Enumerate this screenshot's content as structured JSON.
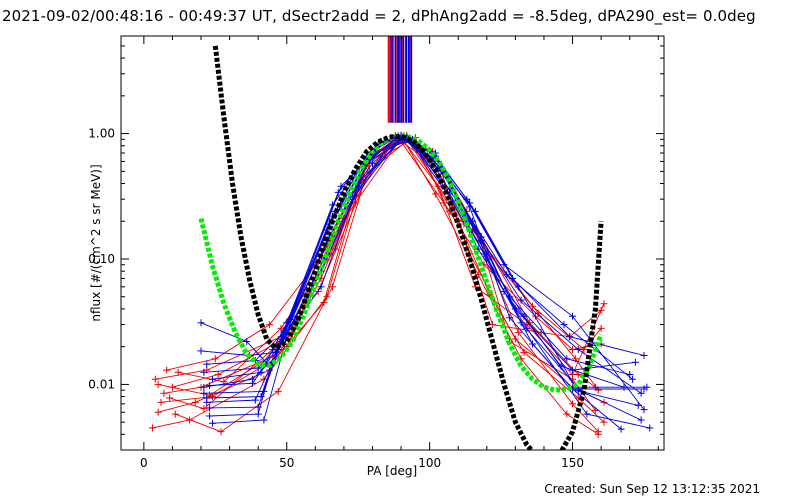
{
  "title": "2021-09-02/00:48:16 - 00:49:37 UT, dSectr2add = 2, dPhAng2add = -8.5deg, dPA290_est=  0.0deg",
  "footer": "Created: Sun Sep 12 13:12:35 2021",
  "colors": {
    "red": "#ee0000",
    "blue": "#0000dd",
    "green": "#00ee00",
    "black": "#000000",
    "purple": "#800080",
    "axis": "#000000"
  },
  "chart_data": {
    "type": "line",
    "title": "2021-09-02/00:48:16 - 00:49:37 UT, dSectr2add = 2, dPhAng2add = -8.5deg, dPA290_est=  0.0deg",
    "xlabel": "PA [deg]",
    "ylabel": "nflux [#/(cm^2 s sr MeV)]",
    "xlim": [
      -8,
      182
    ],
    "ylim": [
      0.003,
      6
    ],
    "yscale": "log",
    "x_ticks": [
      0,
      50,
      100,
      150
    ],
    "x_tick_labels": [
      "0",
      "50",
      "100",
      "150"
    ],
    "y_ticks": [
      0.01,
      0.1,
      1.0
    ],
    "y_tick_labels": [
      "0.01",
      "0.10",
      "1.00"
    ],
    "grid": false,
    "legend": "none",
    "vertical_markers": {
      "y_range": [
        1.22,
        6
      ],
      "red_x": [
        85.6,
        87.2,
        88.6,
        90.2,
        91.6
      ],
      "purple_x": [
        86.2,
        89.4,
        93.0
      ],
      "blue_x": [
        86.8,
        88.0,
        89.0,
        90.0,
        90.8,
        91.8,
        92.6,
        93.6
      ]
    },
    "fit_curves": [
      {
        "color": "green",
        "x": [
          20,
          24,
          28,
          32,
          36,
          40,
          44,
          48,
          52,
          56,
          60,
          64,
          68,
          72,
          76,
          80,
          84,
          88,
          90,
          92,
          96,
          100,
          104,
          108,
          112,
          116,
          120,
          124,
          128,
          132,
          136,
          140,
          144,
          148,
          152,
          156,
          160
        ],
        "y": [
          0.21,
          0.088,
          0.044,
          0.026,
          0.0175,
          0.0145,
          0.0142,
          0.0165,
          0.022,
          0.036,
          0.062,
          0.11,
          0.2,
          0.33,
          0.52,
          0.72,
          0.87,
          0.95,
          0.96,
          0.95,
          0.88,
          0.74,
          0.56,
          0.37,
          0.22,
          0.12,
          0.065,
          0.036,
          0.021,
          0.014,
          0.011,
          0.0095,
          0.009,
          0.0092,
          0.01,
          0.014,
          0.025
        ]
      },
      {
        "color": "black",
        "x": [
          25,
          28,
          31,
          34,
          37,
          40,
          43,
          46,
          50,
          54,
          58,
          62,
          66,
          70,
          74,
          78,
          82,
          86,
          90,
          94,
          98,
          102,
          106,
          110,
          114,
          118,
          122,
          126,
          130,
          134,
          138,
          142,
          146,
          150,
          154,
          158,
          160
        ],
        "y": [
          5.0,
          1.35,
          0.4,
          0.15,
          0.068,
          0.036,
          0.023,
          0.0195,
          0.022,
          0.033,
          0.06,
          0.11,
          0.2,
          0.34,
          0.52,
          0.72,
          0.86,
          0.94,
          0.95,
          0.88,
          0.72,
          0.52,
          0.33,
          0.19,
          0.1,
          0.048,
          0.022,
          0.01,
          0.005,
          0.0033,
          0.0026,
          0.0025,
          0.0029,
          0.0042,
          0.009,
          0.04,
          0.2
        ]
      }
    ],
    "series": [
      {
        "color": "red",
        "x": [
          3,
          16,
          42,
          64,
          76,
          90,
          102,
          117,
          132,
          148,
          159
        ],
        "y": [
          0.0045,
          0.0052,
          0.011,
          0.05,
          0.42,
          0.96,
          0.33,
          0.075,
          0.016,
          0.0058,
          0.004
        ]
      },
      {
        "color": "red",
        "x": [
          5,
          18,
          44,
          62,
          78,
          90,
          104,
          114,
          130,
          150,
          161
        ],
        "y": [
          0.006,
          0.0072,
          0.013,
          0.07,
          0.55,
          0.95,
          0.5,
          0.11,
          0.023,
          0.0095,
          0.0072
        ]
      },
      {
        "color": "red",
        "x": [
          7,
          20,
          46,
          65,
          80,
          92,
          106,
          118,
          135,
          152,
          158
        ],
        "y": [
          0.0085,
          0.0095,
          0.017,
          0.11,
          0.7,
          0.94,
          0.45,
          0.15,
          0.031,
          0.012,
          0.0095
        ]
      },
      {
        "color": "red",
        "x": [
          4,
          22,
          48,
          66,
          82,
          88,
          100,
          112,
          136,
          154,
          160
        ],
        "y": [
          0.011,
          0.013,
          0.024,
          0.16,
          0.82,
          0.93,
          0.6,
          0.19,
          0.042,
          0.019,
          0.028
        ]
      },
      {
        "color": "red",
        "x": [
          8,
          25,
          44,
          60,
          74,
          90,
          103,
          116,
          134,
          150,
          161
        ],
        "y": [
          0.013,
          0.016,
          0.03,
          0.09,
          0.28,
          0.92,
          0.38,
          0.06,
          0.03,
          0.012,
          0.044
        ]
      },
      {
        "color": "red",
        "x": [
          10,
          26,
          52,
          68,
          84,
          92,
          108,
          121,
          133,
          152,
          161
        ],
        "y": [
          0.0095,
          0.012,
          0.025,
          0.2,
          0.74,
          0.9,
          0.26,
          0.052,
          0.018,
          0.0078,
          0.005
        ]
      },
      {
        "color": "red",
        "x": [
          6,
          24,
          46,
          63,
          77,
          91,
          101,
          113,
          131,
          150,
          159
        ],
        "y": [
          0.0072,
          0.008,
          0.016,
          0.045,
          0.6,
          0.96,
          0.72,
          0.24,
          0.026,
          0.007,
          0.0042
        ]
      },
      {
        "color": "red",
        "x": [
          11,
          27,
          47,
          66,
          80,
          89,
          107,
          115,
          138,
          151,
          159
        ],
        "y": [
          0.0058,
          0.0042,
          0.0088,
          0.06,
          0.68,
          0.93,
          0.24,
          0.17,
          0.037,
          0.016,
          0.009
        ]
      },
      {
        "color": "red",
        "x": [
          5,
          23,
          50,
          70,
          83,
          95,
          105,
          119,
          137,
          150,
          160
        ],
        "y": [
          0.01,
          0.0082,
          0.02,
          0.21,
          0.65,
          0.93,
          0.28,
          0.09,
          0.035,
          0.019,
          0.021
        ]
      },
      {
        "color": "red",
        "x": [
          9,
          21,
          45,
          61,
          79,
          93,
          110,
          122,
          139,
          149,
          160
        ],
        "y": [
          0.0078,
          0.0064,
          0.019,
          0.055,
          0.5,
          0.91,
          0.2,
          0.03,
          0.026,
          0.024,
          0.039
        ]
      },
      {
        "color": "red",
        "x": [
          12,
          28,
          48,
          67,
          78,
          92,
          104,
          117,
          128,
          150,
          158
        ],
        "y": [
          0.0125,
          0.0105,
          0.028,
          0.12,
          0.58,
          0.97,
          0.52,
          0.16,
          0.022,
          0.011,
          0.0062
        ]
      },
      {
        "color": "blue",
        "x": [
          20,
          36,
          44,
          62,
          74,
          90,
          100,
          114,
          126,
          146,
          168
        ],
        "y": [
          0.031,
          0.022,
          0.014,
          0.08,
          0.32,
          0.94,
          0.62,
          0.2,
          0.055,
          0.014,
          0.0095
        ]
      },
      {
        "color": "blue",
        "x": [
          21,
          38,
          46,
          64,
          76,
          91,
          104,
          116,
          128,
          148,
          170
        ],
        "y": [
          0.0095,
          0.011,
          0.0165,
          0.14,
          0.43,
          0.93,
          0.54,
          0.17,
          0.05,
          0.016,
          0.012
        ]
      },
      {
        "color": "blue",
        "x": [
          22,
          39,
          47,
          65,
          78,
          92,
          106,
          118,
          130,
          150,
          172
        ],
        "y": [
          0.0072,
          0.0075,
          0.019,
          0.2,
          0.59,
          0.9,
          0.45,
          0.14,
          0.04,
          0.013,
          0.015
        ]
      },
      {
        "color": "blue",
        "x": [
          23,
          40,
          48,
          66,
          80,
          88,
          102,
          112,
          132,
          152,
          174
        ],
        "y": [
          0.0065,
          0.0066,
          0.023,
          0.27,
          0.72,
          0.92,
          0.7,
          0.23,
          0.047,
          0.019,
          0.0085
        ]
      },
      {
        "color": "blue",
        "x": [
          24,
          41,
          50,
          68,
          82,
          90,
          103,
          114,
          129,
          149,
          175
        ],
        "y": [
          0.011,
          0.0125,
          0.031,
          0.34,
          0.82,
          0.95,
          0.6,
          0.28,
          0.07,
          0.024,
          0.017
        ]
      },
      {
        "color": "blue",
        "x": [
          21,
          42,
          51,
          69,
          84,
          93,
          107,
          119,
          133,
          152,
          173
        ],
        "y": [
          0.0085,
          0.0088,
          0.033,
          0.38,
          0.86,
          0.91,
          0.33,
          0.11,
          0.035,
          0.0089,
          0.0068
        ]
      },
      {
        "color": "blue",
        "x": [
          22,
          39,
          49,
          64,
          77,
          89,
          101,
          115,
          127,
          147,
          171
        ],
        "y": [
          0.0145,
          0.0155,
          0.026,
          0.17,
          0.55,
          0.96,
          0.64,
          0.2,
          0.075,
          0.03,
          0.011
        ]
      },
      {
        "color": "blue",
        "x": [
          23,
          40,
          45,
          63,
          75,
          91,
          105,
          116,
          131,
          151,
          176
        ],
        "y": [
          0.0056,
          0.0058,
          0.015,
          0.1,
          0.38,
          0.94,
          0.48,
          0.24,
          0.06,
          0.0095,
          0.0095
        ]
      },
      {
        "color": "blue",
        "x": [
          24,
          42,
          52,
          67,
          81,
          92,
          108,
          117,
          134,
          155,
          177
        ],
        "y": [
          0.0049,
          0.0052,
          0.035,
          0.24,
          0.7,
          0.93,
          0.29,
          0.12,
          0.028,
          0.0058,
          0.0045
        ]
      },
      {
        "color": "blue",
        "x": [
          20,
          37,
          46,
          65,
          79,
          90,
          102,
          113,
          126,
          150,
          175
        ],
        "y": [
          0.0185,
          0.017,
          0.018,
          0.15,
          0.62,
          0.97,
          0.66,
          0.3,
          0.09,
          0.035,
          0.0063
        ]
      },
      {
        "color": "blue",
        "x": [
          22,
          41,
          49,
          66,
          78,
          94,
          104,
          118,
          132,
          153,
          174
        ],
        "y": [
          0.0078,
          0.008,
          0.027,
          0.22,
          0.66,
          0.9,
          0.52,
          0.15,
          0.031,
          0.0088,
          0.0052
        ]
      },
      {
        "color": "blue",
        "x": [
          21,
          40,
          48,
          62,
          73,
          88,
          100,
          114,
          128,
          150,
          167
        ],
        "y": [
          0.0125,
          0.0135,
          0.022,
          0.06,
          0.3,
          0.96,
          0.73,
          0.26,
          0.034,
          0.0092,
          0.0044
        ]
      },
      {
        "color": "blue",
        "x": [
          23,
          38,
          47,
          65,
          80,
          91,
          107,
          120,
          136,
          150,
          175
        ],
        "y": [
          0.0098,
          0.0102,
          0.02,
          0.19,
          0.58,
          0.95,
          0.36,
          0.1,
          0.021,
          0.0092,
          0.0092
        ]
      }
    ]
  }
}
